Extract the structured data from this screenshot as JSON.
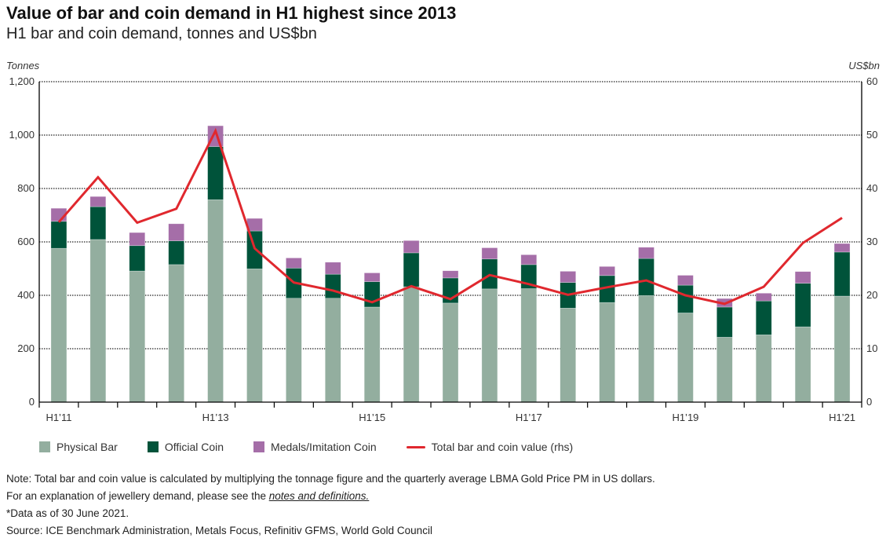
{
  "header": {
    "title": "Value of bar and coin demand in H1 highest since 2013",
    "subtitle": "H1 bar and coin demand, tonnes and US$bn"
  },
  "chart_data": {
    "type": "bar",
    "stacked": true,
    "title": "Value of bar and coin demand in H1 highest since 2013",
    "subtitle": "H1 bar and coin demand, tonnes and US$bn",
    "left_axis_label": "Tonnes",
    "right_axis_label": "US$bn",
    "ylim_left": [
      0,
      1200
    ],
    "ylim_right": [
      0,
      60
    ],
    "left_ticks": [
      "0",
      "200",
      "400",
      "600",
      "800",
      "1,000",
      "1,200"
    ],
    "left_tick_values": [
      0,
      200,
      400,
      600,
      800,
      1000,
      1200
    ],
    "right_ticks": [
      "0",
      "10",
      "20",
      "30",
      "40",
      "50",
      "60"
    ],
    "right_tick_values": [
      0,
      10,
      20,
      30,
      40,
      50,
      60
    ],
    "grid": true,
    "x_tick_labels": [
      "H1’11",
      "",
      "",
      "",
      "H1’13",
      "",
      "",
      "",
      "H1’15",
      "",
      "",
      "",
      "H1’17",
      "",
      "",
      "",
      "H1’19",
      "",
      "",
      "",
      "H1’21"
    ],
    "series": [
      {
        "name": "Physical Bar",
        "type": "bar",
        "axis": "left",
        "color": "#93AE9F",
        "values": [
          576,
          609,
          491,
          515,
          758,
          499,
          389,
          389,
          356,
          432,
          371,
          424,
          425,
          352,
          373,
          399,
          334,
          243,
          252,
          282,
          397
        ]
      },
      {
        "name": "Official Coin",
        "type": "bar",
        "axis": "left",
        "color": "#00533A",
        "values": [
          101,
          123,
          95,
          89,
          199,
          142,
          113,
          90,
          95,
          127,
          94,
          112,
          90,
          96,
          101,
          139,
          104,
          113,
          127,
          163,
          165
        ]
      },
      {
        "name": "Medals/Imitation Coin",
        "type": "bar",
        "axis": "left",
        "color": "#A56EA8",
        "values": [
          49,
          38,
          49,
          64,
          78,
          47,
          38,
          45,
          33,
          46,
          27,
          42,
          37,
          42,
          34,
          42,
          37,
          32,
          29,
          44,
          32
        ]
      },
      {
        "name": "Total bar and coin value (rhs)",
        "type": "line",
        "axis": "right",
        "color": "#E0282E",
        "values": [
          33.7,
          42.1,
          33.6,
          36.2,
          50.8,
          28.8,
          22.4,
          20.9,
          18.7,
          21.7,
          19.3,
          23.8,
          22.1,
          20.1,
          21.5,
          22.8,
          20.0,
          18.4,
          21.6,
          29.8,
          34.5
        ]
      }
    ],
    "legend_position": "bottom"
  },
  "legend": {
    "items": [
      {
        "label": "Physical Bar",
        "color": "#93AE9F",
        "kind": "box"
      },
      {
        "label": "Official Coin",
        "color": "#00533A",
        "kind": "box"
      },
      {
        "label": "Medals/Imitation Coin",
        "color": "#A56EA8",
        "kind": "box"
      },
      {
        "label": "Total bar and coin value (rhs)",
        "color": "#E0282E",
        "kind": "line"
      }
    ]
  },
  "notes": {
    "line1": "Note: Total bar and coin value is calculated by multiplying the tonnage figure and the quarterly average LBMA Gold Price PM in US dollars.",
    "line2_prefix": "For an explanation of jewellery demand, please see the ",
    "line2_link": "notes and definitions.",
    "line3": "*Data as of 30 June 2021.",
    "source": "Source: ICE Benchmark Administration, Metals Focus, Refinitiv GFMS, World Gold Council"
  }
}
